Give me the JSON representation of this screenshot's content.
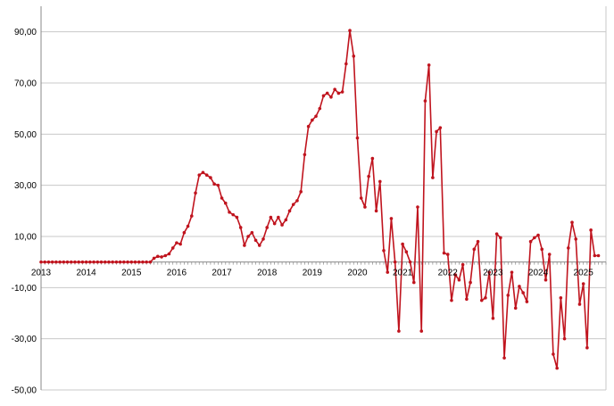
{
  "chart_data": {
    "type": "line",
    "title": "",
    "xlabel": "",
    "ylabel": "",
    "ylim": [
      -50,
      100
    ],
    "xlim": [
      2013.0,
      2025.5
    ],
    "grid": true,
    "legend": "none",
    "y_ticks": [
      -50,
      -30,
      -10,
      10,
      30,
      50,
      70,
      90
    ],
    "y_tick_labels": [
      "-50,00",
      "-30,00",
      "-10,00",
      "10,00",
      "30,00",
      "50,00",
      "70,00",
      "90,00"
    ],
    "x_ticks": [
      2013,
      2014,
      2015,
      2016,
      2017,
      2018,
      2019,
      2020,
      2021,
      2022,
      2023,
      2024,
      2025
    ],
    "x_tick_labels": [
      "2013",
      "2014",
      "2015",
      "2016",
      "2017",
      "2018",
      "2019",
      "2020",
      "2021",
      "2022",
      "2023",
      "2024",
      "2025"
    ],
    "colors": {
      "series": "#c0141e",
      "grid": "#c8c8c8",
      "axis": "#888888"
    },
    "series": [
      {
        "name": "",
        "x": [
          2013.0,
          2013.083,
          2013.167,
          2013.25,
          2013.333,
          2013.417,
          2013.5,
          2013.583,
          2013.667,
          2013.75,
          2013.833,
          2013.917,
          2014.0,
          2014.083,
          2014.167,
          2014.25,
          2014.333,
          2014.417,
          2014.5,
          2014.583,
          2014.667,
          2014.75,
          2014.833,
          2014.917,
          2015.0,
          2015.083,
          2015.167,
          2015.25,
          2015.333,
          2015.417,
          2015.5,
          2015.583,
          2015.667,
          2015.75,
          2015.833,
          2015.917,
          2016.0,
          2016.083,
          2016.167,
          2016.25,
          2016.333,
          2016.417,
          2016.5,
          2016.583,
          2016.667,
          2016.75,
          2016.833,
          2016.917,
          2017.0,
          2017.083,
          2017.167,
          2017.25,
          2017.333,
          2017.417,
          2017.5,
          2017.583,
          2017.667,
          2017.75,
          2017.833,
          2017.917,
          2018.0,
          2018.083,
          2018.167,
          2018.25,
          2018.333,
          2018.417,
          2018.5,
          2018.583,
          2018.667,
          2018.75,
          2018.833,
          2018.917,
          2019.0,
          2019.083,
          2019.167,
          2019.25,
          2019.333,
          2019.417,
          2019.5,
          2019.583,
          2019.667,
          2019.75,
          2019.833,
          2019.917,
          2020.0,
          2020.083,
          2020.167,
          2020.25,
          2020.333,
          2020.417,
          2020.5,
          2020.583,
          2020.667,
          2020.75,
          2020.833,
          2020.917,
          2021.0,
          2021.083,
          2021.167,
          2021.25,
          2021.333,
          2021.417,
          2021.5,
          2021.583,
          2021.667,
          2021.75,
          2021.833,
          2021.917,
          2022.0,
          2022.083,
          2022.167,
          2022.25,
          2022.333,
          2022.417,
          2022.5,
          2022.583,
          2022.667,
          2022.75,
          2022.833,
          2022.917,
          2023.0,
          2023.083,
          2023.167,
          2023.25,
          2023.333,
          2023.417,
          2023.5,
          2023.583,
          2023.667,
          2023.75,
          2023.833,
          2023.917,
          2024.0,
          2024.083,
          2024.167,
          2024.25,
          2024.333,
          2024.417,
          2024.5,
          2024.583,
          2024.667,
          2024.75,
          2024.833,
          2024.917,
          2025.0,
          2025.083,
          2025.167,
          2025.25,
          2025.333
        ],
        "y": [
          0,
          0,
          0,
          0,
          0,
          0,
          0,
          0,
          0,
          0,
          0,
          0,
          0,
          0,
          0,
          0,
          0,
          0,
          0,
          0,
          0,
          0,
          0,
          0,
          0,
          0,
          0,
          0,
          0,
          0,
          1.5,
          2.2,
          2.0,
          2.5,
          3.2,
          5.5,
          7.5,
          7.0,
          11.5,
          14.0,
          18.0,
          27.0,
          34.0,
          35.0,
          34.0,
          33.0,
          30.5,
          30.0,
          25.0,
          23.0,
          19.5,
          18.5,
          17.5,
          13.5,
          6.5,
          10.0,
          11.5,
          8.5,
          6.5,
          9.0,
          13.5,
          17.5,
          15.0,
          17.5,
          14.5,
          16.5,
          20.0,
          22.5,
          24.0,
          27.5,
          42.0,
          53.0,
          55.5,
          57.0,
          60.0,
          65.0,
          66.0,
          64.5,
          67.5,
          66.0,
          66.5,
          77.5,
          90.5,
          80.5,
          48.5,
          25.0,
          21.5,
          33.5,
          40.5,
          20.0,
          31.5,
          4.5,
          -4.0,
          17.0,
          0.0,
          -27.0,
          7.0,
          4.0,
          0.0,
          -8.0,
          21.5,
          -27.0,
          63.0,
          77.0,
          33.0,
          51.0,
          52.5,
          3.5,
          3.0,
          -15.0,
          -5.0,
          -7.0,
          -1.0,
          -14.5,
          -8.0,
          5.0,
          8.0,
          -15.0,
          -14.0,
          -4.0,
          -22.0,
          11.0,
          9.5,
          -37.5,
          -13.0,
          -4.0,
          -18.0,
          -9.5,
          -12.0,
          -15.5,
          8.0,
          9.5,
          10.5,
          5.0,
          -7.0,
          3.0,
          -36.0,
          -41.5,
          -14.0,
          -30.0,
          5.5,
          15.5,
          9.0,
          -16.5,
          -8.5,
          -33.5,
          12.5,
          2.5,
          2.5
        ]
      }
    ]
  }
}
